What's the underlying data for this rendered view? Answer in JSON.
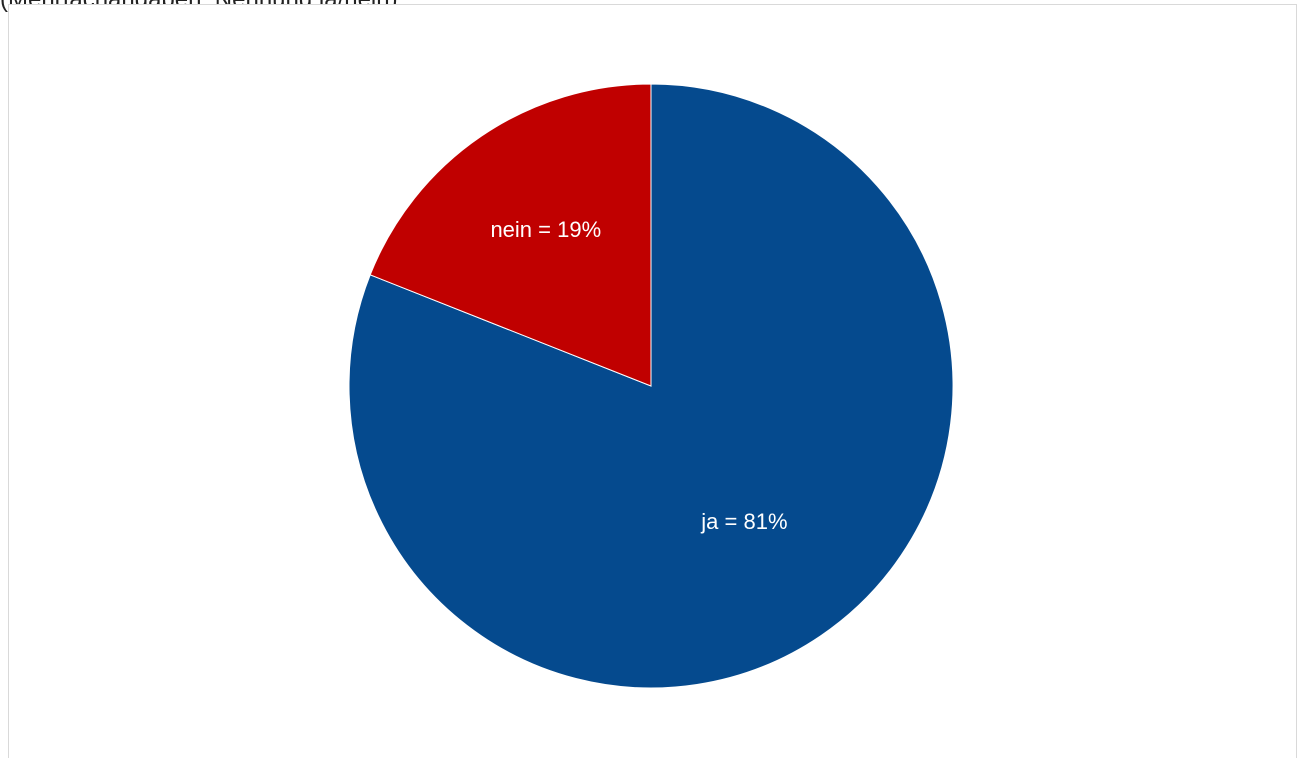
{
  "caption": "(Mehrfachangaben, Nennung ja/nein)",
  "chart_data": {
    "type": "pie",
    "title": "",
    "start_angle_deg": 0,
    "direction": "clockwise",
    "slices": [
      {
        "label": "ja = 81%",
        "category": "ja",
        "value": 81,
        "color": "#054A8E"
      },
      {
        "label": "nein = 19%",
        "category": "nein",
        "value": 19,
        "color": "#C00000"
      }
    ],
    "legend": "none"
  }
}
